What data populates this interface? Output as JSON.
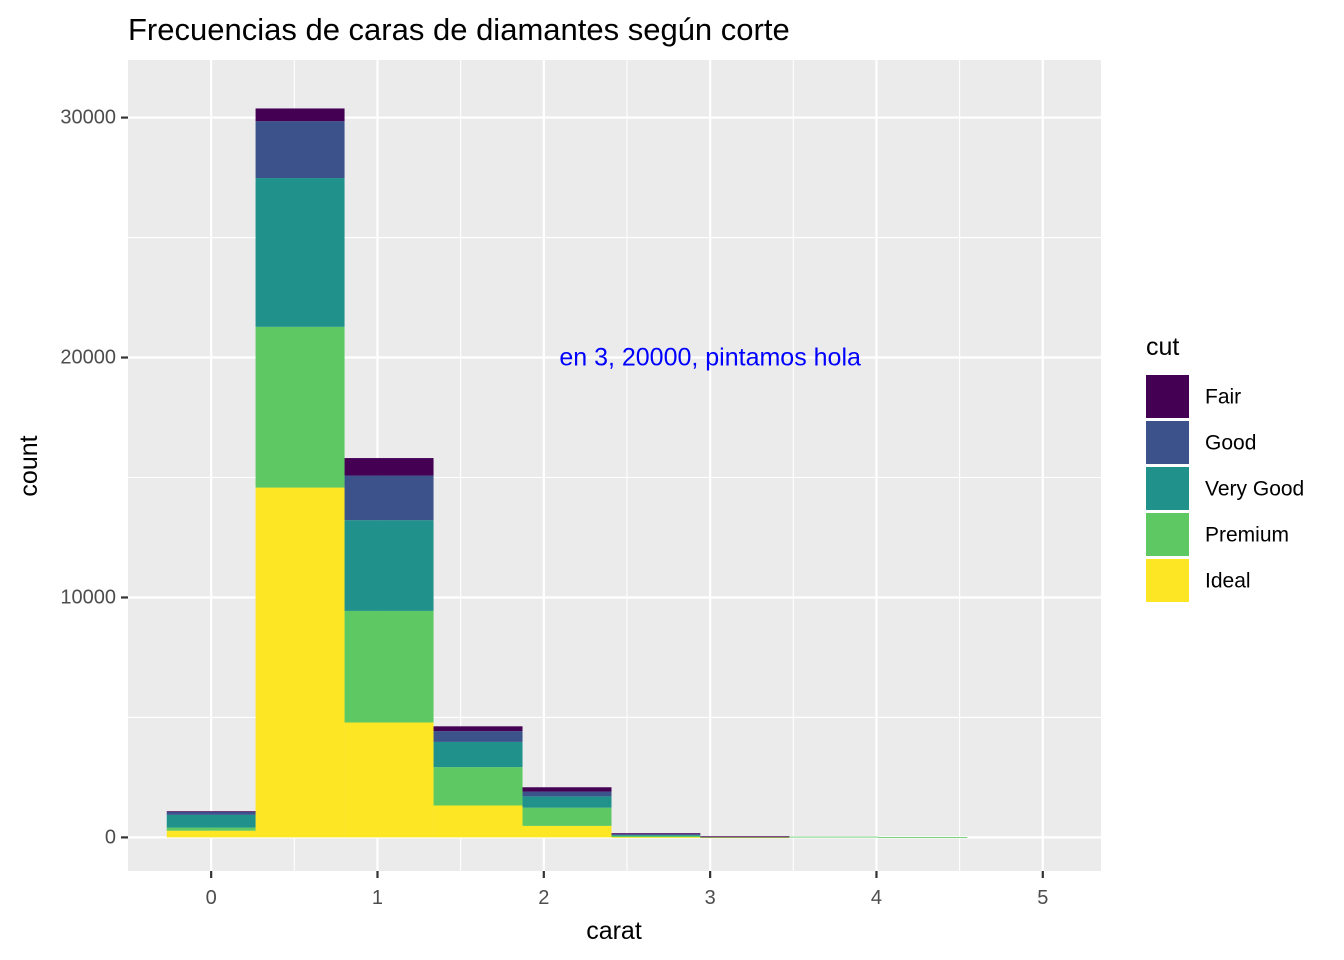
{
  "chart_data": {
    "type": "bar",
    "stacked": true,
    "title": "Frecuencias de caras de diamantes según corte",
    "xlabel": "carat",
    "ylabel": "count",
    "xlim": [
      -0.5,
      5.35
    ],
    "ylim": [
      -1400,
      32400
    ],
    "xticks": [
      0,
      1,
      2,
      3,
      4,
      5
    ],
    "xtick_labels": [
      "0",
      "1",
      "2",
      "3",
      "4",
      "5"
    ],
    "yticks": [
      0,
      10000,
      20000,
      30000
    ],
    "ytick_labels": [
      "0",
      "10000",
      "20000",
      "30000"
    ],
    "grid": true,
    "background": "#ebebeb",
    "bin_width": 0.5348,
    "bins": [
      {
        "x0": -0.267,
        "x1": 0.267
      },
      {
        "x0": 0.267,
        "x1": 0.802
      },
      {
        "x0": 0.802,
        "x1": 1.337
      },
      {
        "x0": 1.337,
        "x1": 1.872
      },
      {
        "x0": 1.872,
        "x1": 2.407
      },
      {
        "x0": 2.407,
        "x1": 2.941
      },
      {
        "x0": 2.941,
        "x1": 3.476
      },
      {
        "x0": 3.476,
        "x1": 4.011
      },
      {
        "x0": 4.011,
        "x1": 4.546
      }
    ],
    "series": [
      {
        "name": "Ideal",
        "color": "#FDE725",
        "values": [
          280,
          14580,
          4790,
          1330,
          480,
          15,
          5,
          0,
          0
        ]
      },
      {
        "name": "Premium",
        "color": "#5EC962",
        "values": [
          130,
          6700,
          4650,
          1600,
          760,
          50,
          20,
          30,
          10
        ]
      },
      {
        "name": "Very Good",
        "color": "#21918C",
        "values": [
          530,
          6200,
          3780,
          1050,
          470,
          50,
          10,
          0,
          0
        ]
      },
      {
        "name": "Good",
        "color": "#3B528B",
        "values": [
          130,
          2370,
          1860,
          450,
          200,
          20,
          5,
          0,
          0
        ]
      },
      {
        "name": "Fair",
        "color": "#440154",
        "values": [
          20,
          530,
          730,
          200,
          180,
          40,
          5,
          0,
          0
        ]
      }
    ],
    "legend": {
      "title": "cut",
      "position": "right",
      "order": [
        "Fair",
        "Good",
        "Very Good",
        "Premium",
        "Ideal"
      ]
    },
    "annotations": [
      {
        "text": "en 3, 20000, pintamos hola",
        "x": 3,
        "y": 20000,
        "color": "#0000FF"
      }
    ]
  }
}
